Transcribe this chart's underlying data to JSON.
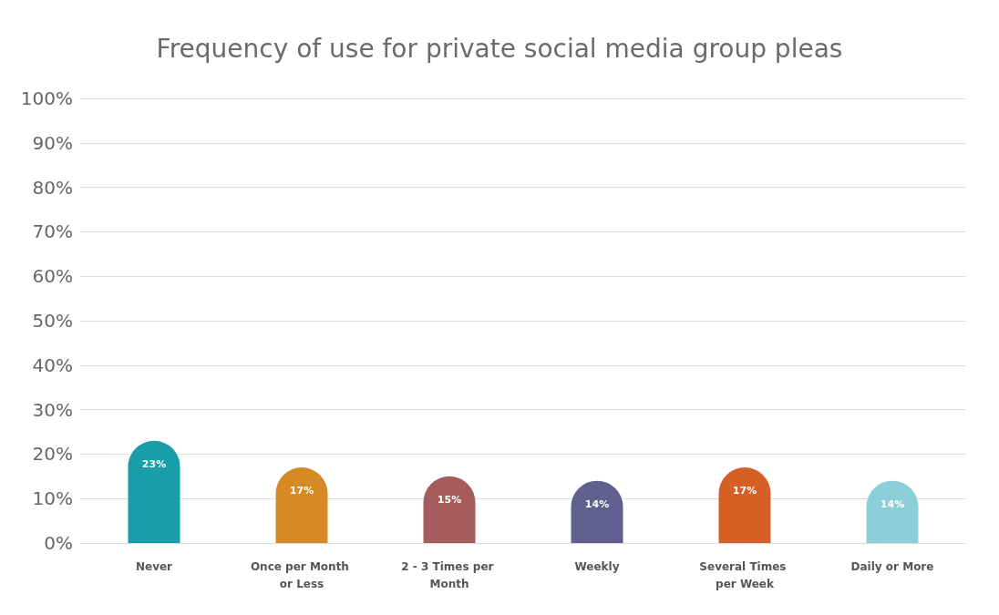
{
  "chart_data": {
    "type": "bar",
    "title": "Frequency of use for private social media group pleas",
    "categories": [
      "Never",
      "Once per Month or Less",
      "2 - 3 Times per Month",
      "Weekly",
      "Several Times per Week",
      "Daily or More"
    ],
    "values": [
      23,
      17,
      15,
      14,
      17,
      14
    ],
    "colors": [
      "#179ea8",
      "#d68a26",
      "#a45c5c",
      "#625f8e",
      "#d65f26",
      "#8bd0d8"
    ],
    "value_labels": [
      "23%",
      "17%",
      "15%",
      "14%",
      "17%",
      "14%"
    ],
    "ylim": [
      0,
      100
    ],
    "yticks": [
      {
        "value": 0,
        "label": "0%"
      },
      {
        "value": 10,
        "label": "10%"
      },
      {
        "value": 20,
        "label": "20%"
      },
      {
        "value": 30,
        "label": "30%"
      },
      {
        "value": 40,
        "label": "40%"
      },
      {
        "value": 50,
        "label": "50%"
      },
      {
        "value": 60,
        "label": "60%"
      },
      {
        "value": 70,
        "label": "70%"
      },
      {
        "value": 80,
        "label": "80%"
      },
      {
        "value": 90,
        "label": "90%"
      },
      {
        "value": 100,
        "label": "100%"
      }
    ],
    "grid": "y"
  }
}
